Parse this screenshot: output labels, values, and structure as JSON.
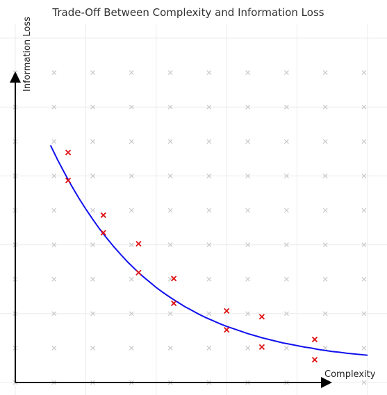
{
  "chart_data": {
    "type": "scatter",
    "title": "Trade-Off Between Complexity and Information Loss",
    "xlabel": "Complexity",
    "ylabel": "Information Loss",
    "xlim": [
      0,
      10
    ],
    "ylim": [
      0,
      10
    ],
    "grid": true,
    "axis_ticks_labeled": false,
    "colors": {
      "curve": "#1010ee",
      "points": "#e01010",
      "background_marks": "#c8c8c8",
      "grid": "#ebebeb",
      "axis": "#000000"
    },
    "curve": {
      "x": [
        1.0,
        1.2,
        1.4,
        1.6,
        1.8,
        2.0,
        2.2,
        2.4,
        2.6,
        2.8,
        3.0,
        3.2,
        3.4,
        3.6,
        3.8,
        4.0,
        4.2,
        4.4,
        4.6,
        4.8,
        5.0,
        5.2,
        5.4,
        5.6,
        5.8,
        6.0,
        6.2,
        6.4,
        6.6,
        6.8,
        7.0,
        7.2,
        7.4,
        7.6,
        7.8,
        8.0,
        8.2,
        8.4,
        8.6,
        8.8,
        9.0,
        9.2,
        9.4,
        9.6,
        9.8,
        10.0
      ],
      "y": [
        6.89,
        6.47,
        6.08,
        5.71,
        5.36,
        5.04,
        4.74,
        4.45,
        4.19,
        3.94,
        3.71,
        3.49,
        3.29,
        3.1,
        2.93,
        2.76,
        2.61,
        2.47,
        2.34,
        2.21,
        2.1,
        1.99,
        1.89,
        1.8,
        1.71,
        1.63,
        1.56,
        1.49,
        1.42,
        1.36,
        1.3,
        1.25,
        1.2,
        1.15,
        1.11,
        1.07,
        1.03,
        1.0,
        0.96,
        0.93,
        0.9,
        0.88,
        0.85,
        0.83,
        0.81,
        0.79
      ]
    },
    "series": [
      {
        "x": [
          1.5,
          2.5,
          3.5,
          4.5,
          6.0,
          7.0,
          8.5
        ],
        "y": [
          5.87,
          4.35,
          3.19,
          2.3,
          1.53,
          1.03,
          0.66
        ]
      },
      {
        "x": [
          1.5,
          2.5,
          3.5,
          4.5,
          6.0,
          7.0,
          8.5
        ],
        "y": [
          6.68,
          4.86,
          4.03,
          3.02,
          2.08,
          1.91,
          1.25
        ]
      }
    ],
    "background_marks": {
      "x": [
        0,
        1.1,
        2.2,
        3.3,
        4.4,
        5.5,
        6.6,
        7.7,
        8.8,
        9.9
      ],
      "y": [
        0,
        1,
        2,
        3,
        4,
        5,
        6,
        7,
        8,
        9
      ]
    }
  }
}
